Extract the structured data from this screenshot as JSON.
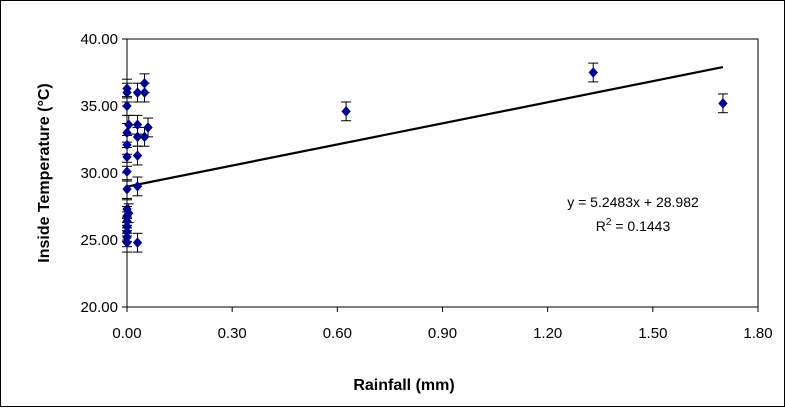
{
  "chart_data": {
    "type": "scatter",
    "title": "",
    "xlabel": "Rainfall (mm)",
    "ylabel": "Inside Temperature (°C)",
    "xlim": [
      0,
      1.8
    ],
    "ylim": [
      20,
      40
    ],
    "x_ticks": [
      "0.00",
      "0.30",
      "0.60",
      "0.90",
      "1.20",
      "1.50",
      "1.80"
    ],
    "y_ticks": [
      "20.00",
      "25.00",
      "30.00",
      "35.00",
      "40.00"
    ],
    "grid": false,
    "legend": "none",
    "marker_color": "#00008B",
    "error_bar": 0.7,
    "points": [
      {
        "x": 0.0,
        "y": 36.3
      },
      {
        "x": 0.0,
        "y": 36.0
      },
      {
        "x": 0.0,
        "y": 35.0
      },
      {
        "x": 0.0,
        "y": 33.0
      },
      {
        "x": 0.0,
        "y": 32.1
      },
      {
        "x": 0.0,
        "y": 31.2
      },
      {
        "x": 0.0,
        "y": 30.1
      },
      {
        "x": 0.0,
        "y": 28.8
      },
      {
        "x": 0.0,
        "y": 27.3
      },
      {
        "x": 0.0,
        "y": 26.8
      },
      {
        "x": 0.0,
        "y": 26.4
      },
      {
        "x": 0.0,
        "y": 26.0
      },
      {
        "x": 0.0,
        "y": 25.6
      },
      {
        "x": 0.0,
        "y": 25.2
      },
      {
        "x": 0.0,
        "y": 24.8
      },
      {
        "x": 0.005,
        "y": 33.6
      },
      {
        "x": 0.005,
        "y": 27.0
      },
      {
        "x": 0.03,
        "y": 36.0
      },
      {
        "x": 0.03,
        "y": 33.6
      },
      {
        "x": 0.03,
        "y": 32.7
      },
      {
        "x": 0.03,
        "y": 31.3
      },
      {
        "x": 0.03,
        "y": 29.0
      },
      {
        "x": 0.03,
        "y": 24.8
      },
      {
        "x": 0.05,
        "y": 36.7
      },
      {
        "x": 0.05,
        "y": 36.0
      },
      {
        "x": 0.05,
        "y": 32.7
      },
      {
        "x": 0.06,
        "y": 33.4
      },
      {
        "x": 0.625,
        "y": 34.6
      },
      {
        "x": 1.33,
        "y": 37.5
      },
      {
        "x": 1.7,
        "y": 35.2
      }
    ],
    "trendline": {
      "slope": 5.2483,
      "intercept": 28.982,
      "x_range": [
        0,
        1.7
      ]
    },
    "annotations": {
      "equation": "y = 5.2483x + 28.982",
      "r2_prefix": "R",
      "r2_sup": "2",
      "r2_value": " = 0.1443"
    }
  }
}
